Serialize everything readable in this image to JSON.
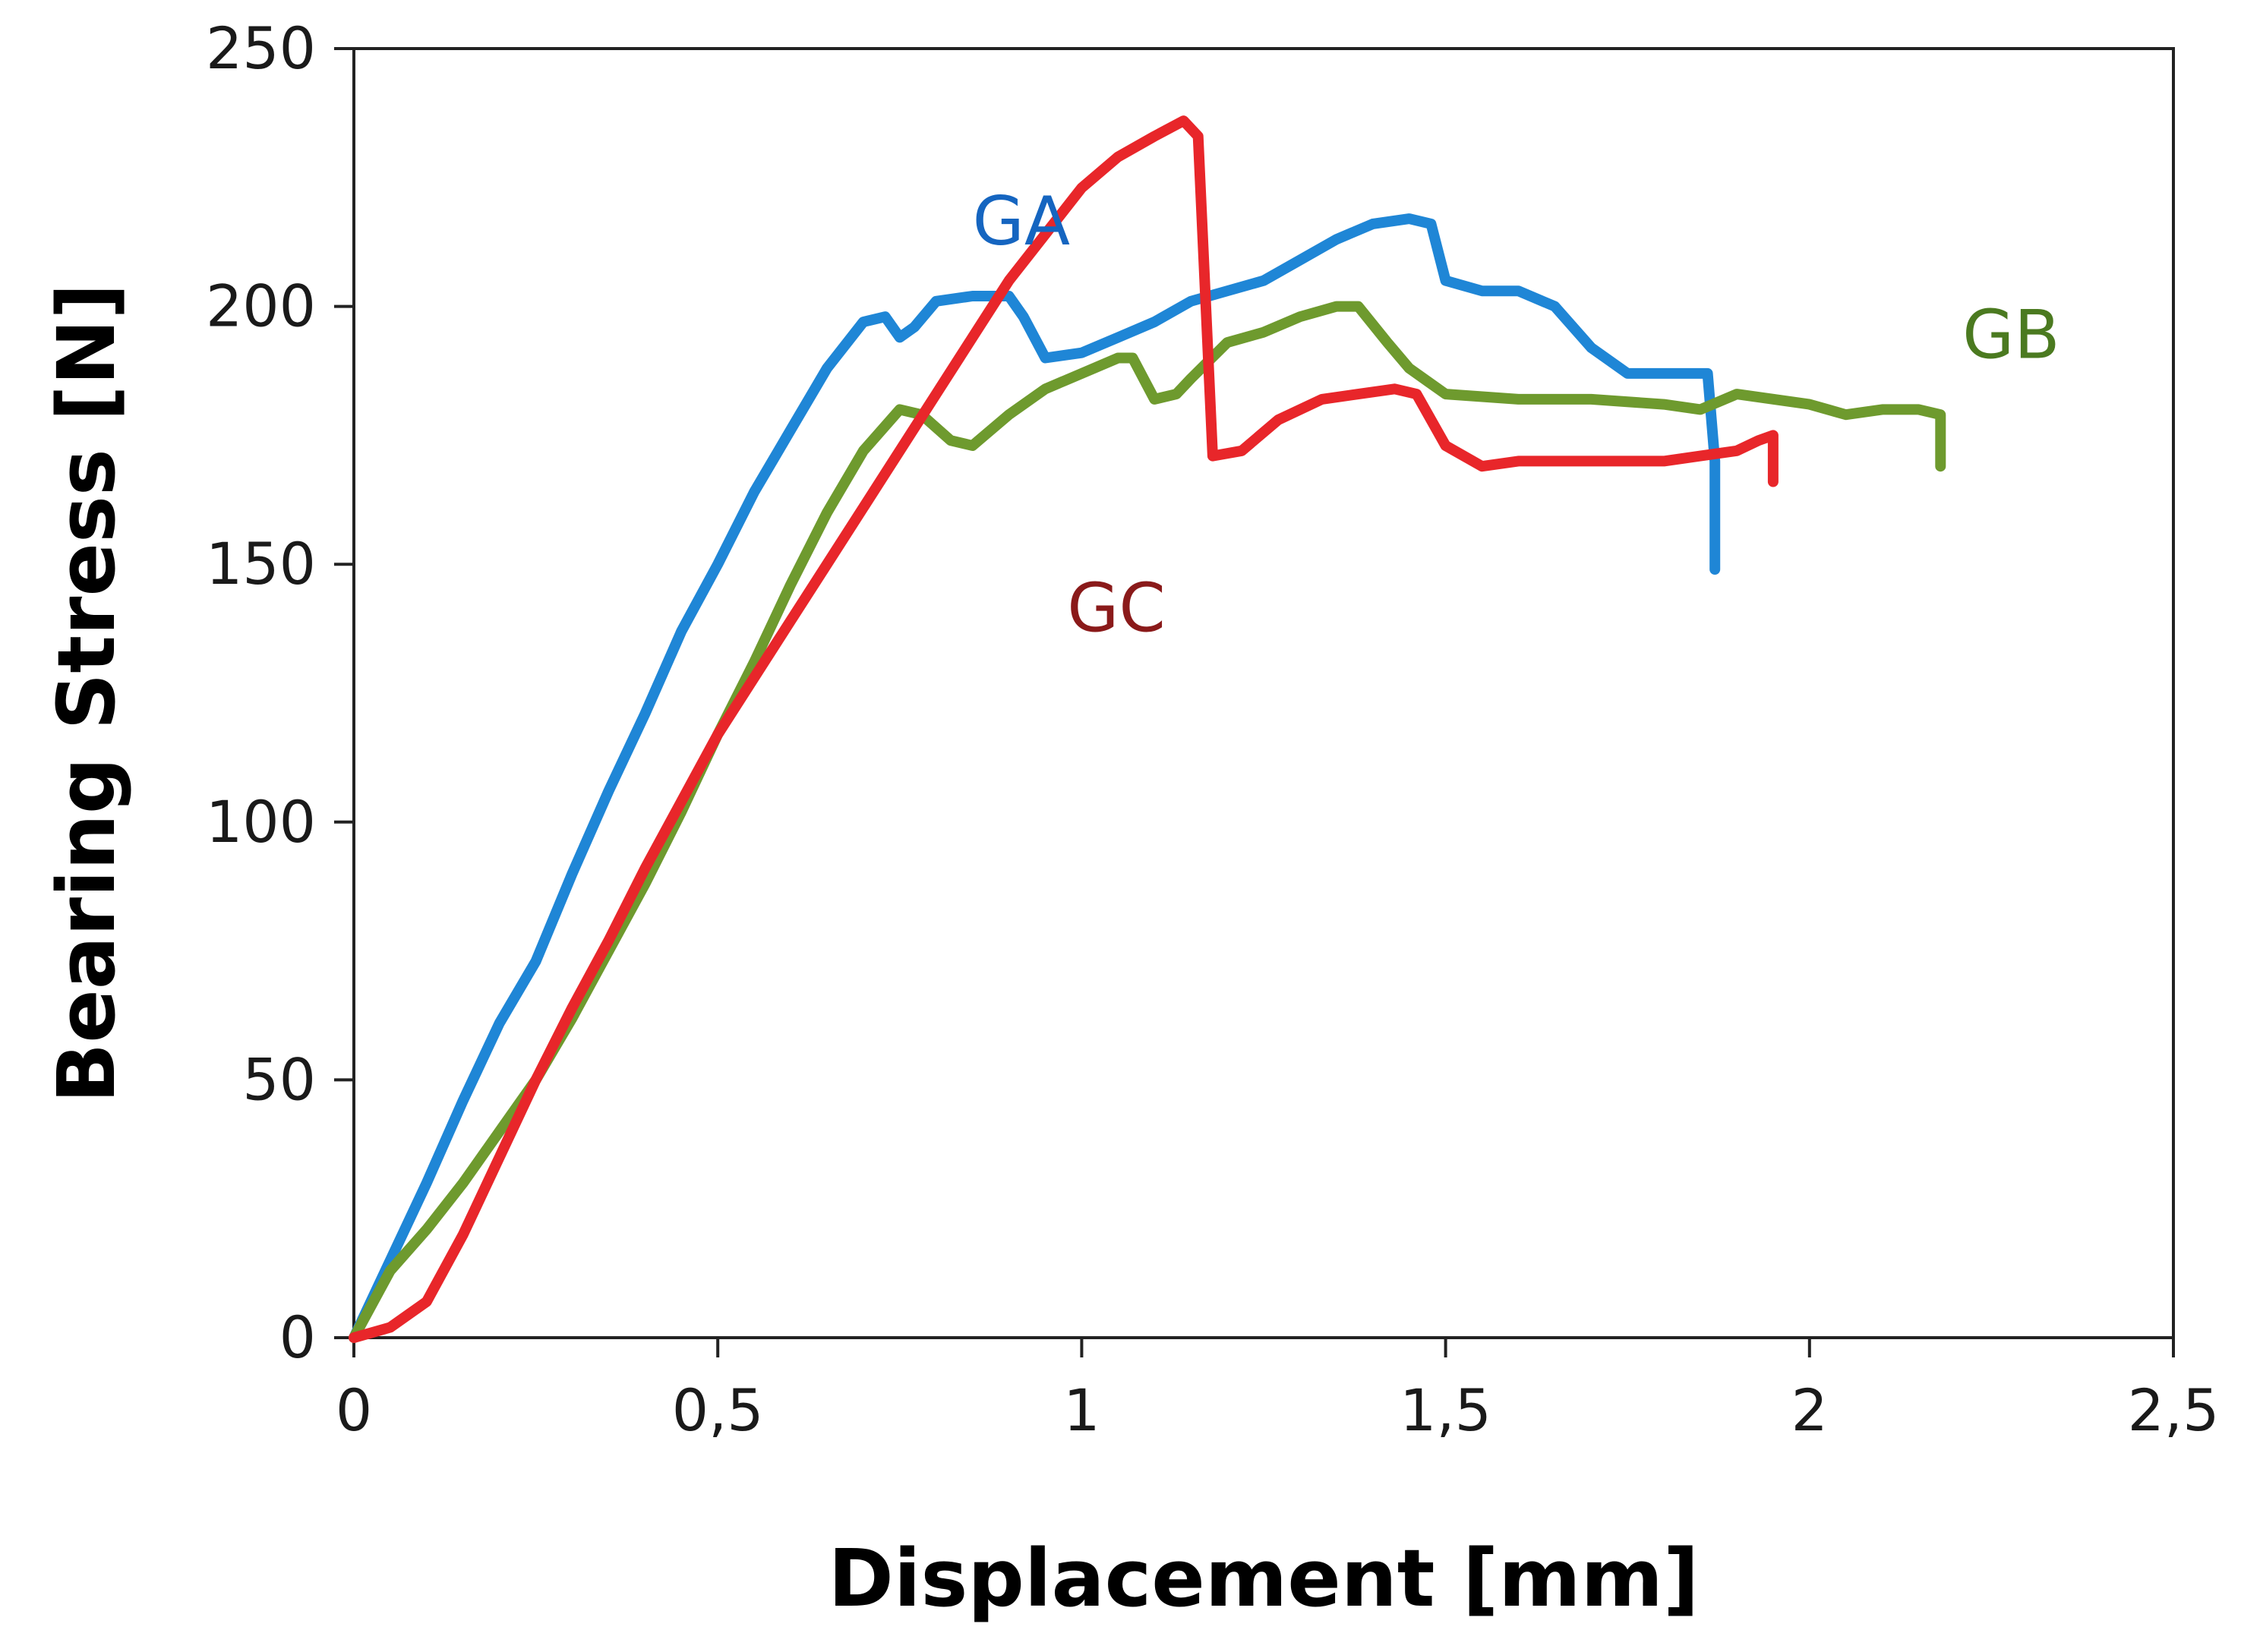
{
  "chart_data": {
    "type": "line",
    "title": "",
    "xlabel": "Displacement [mm]",
    "ylabel": "Bearing Stress [N]",
    "xlim": [
      0,
      2.5
    ],
    "ylim": [
      0,
      250
    ],
    "xticks": [
      0,
      0.5,
      1,
      1.5,
      2,
      2.5
    ],
    "xtick_labels": [
      "0",
      "0,5",
      "1",
      "1,5",
      "2",
      "2,5"
    ],
    "yticks": [
      0,
      50,
      100,
      150,
      200,
      250
    ],
    "ytick_labels": [
      "0",
      "50",
      "100",
      "150",
      "200",
      "250"
    ],
    "grid": false,
    "legend": "inline labels",
    "series": [
      {
        "name": "GA",
        "color": "#1f86d6",
        "label_color": "#1565c0",
        "x": [
          0,
          0.05,
          0.1,
          0.15,
          0.2,
          0.25,
          0.3,
          0.35,
          0.4,
          0.45,
          0.5,
          0.55,
          0.6,
          0.65,
          0.7,
          0.73,
          0.75,
          0.77,
          0.8,
          0.85,
          0.9,
          0.92,
          0.95,
          1.0,
          1.05,
          1.1,
          1.15,
          1.2,
          1.25,
          1.3,
          1.35,
          1.4,
          1.45,
          1.48,
          1.5,
          1.55,
          1.6,
          1.65,
          1.7,
          1.75,
          1.8,
          1.86,
          1.87,
          1.87
        ],
        "y": [
          0,
          15,
          30,
          46,
          61,
          73,
          90,
          106,
          121,
          137,
          150,
          164,
          176,
          188,
          197,
          198,
          194,
          196,
          201,
          202,
          202,
          198,
          190,
          191,
          194,
          197,
          201,
          203,
          205,
          209,
          213,
          216,
          217,
          216,
          205,
          203,
          203,
          200,
          192,
          187,
          187,
          187,
          170,
          149
        ]
      },
      {
        "name": "GB",
        "color": "#6e9a2e",
        "label_color": "#4b7a20",
        "x": [
          0,
          0.05,
          0.1,
          0.15,
          0.2,
          0.25,
          0.3,
          0.35,
          0.4,
          0.45,
          0.5,
          0.55,
          0.6,
          0.65,
          0.7,
          0.75,
          0.78,
          0.82,
          0.85,
          0.9,
          0.95,
          1.0,
          1.05,
          1.07,
          1.1,
          1.13,
          1.15,
          1.2,
          1.25,
          1.3,
          1.35,
          1.38,
          1.42,
          1.45,
          1.5,
          1.6,
          1.7,
          1.8,
          1.85,
          1.9,
          2.0,
          2.05,
          2.1,
          2.15,
          2.18,
          2.18
        ],
        "y": [
          0,
          13,
          21,
          30,
          40,
          50,
          62,
          75,
          88,
          102,
          117,
          131,
          146,
          160,
          172,
          180,
          179,
          174,
          173,
          179,
          184,
          187,
          190,
          190,
          182,
          183,
          186,
          193,
          195,
          198,
          200,
          200,
          193,
          188,
          183,
          182,
          182,
          181,
          180,
          183,
          181,
          179,
          180,
          180,
          179,
          169
        ]
      },
      {
        "name": "GC",
        "color": "#e8262a",
        "label_color": "#8a1a1a",
        "x": [
          0,
          0.05,
          0.1,
          0.15,
          0.2,
          0.25,
          0.3,
          0.35,
          0.4,
          0.45,
          0.5,
          0.55,
          0.6,
          0.65,
          0.7,
          0.75,
          0.8,
          0.85,
          0.9,
          0.95,
          1.0,
          1.05,
          1.1,
          1.14,
          1.16,
          1.18,
          1.22,
          1.27,
          1.33,
          1.38,
          1.43,
          1.46,
          1.5,
          1.55,
          1.6,
          1.7,
          1.8,
          1.85,
          1.9,
          1.93,
          1.95,
          1.95
        ],
        "y": [
          0,
          2,
          7,
          20,
          35,
          50,
          64,
          77,
          91,
          104,
          117,
          128,
          139,
          150,
          161,
          172,
          183,
          194,
          205,
          214,
          223,
          229,
          233,
          236,
          233,
          171,
          172,
          178,
          182,
          183,
          184,
          183,
          173,
          169,
          170,
          170,
          170,
          171,
          172,
          174,
          175,
          166
        ]
      }
    ],
    "annotations": [
      {
        "text": "GA",
        "x": 0.85,
        "y": 212,
        "series": "GA"
      },
      {
        "text": "GB",
        "x": 2.21,
        "y": 190,
        "series": "GB"
      },
      {
        "text": "GC",
        "x": 0.98,
        "y": 137,
        "series": "GC"
      }
    ]
  }
}
